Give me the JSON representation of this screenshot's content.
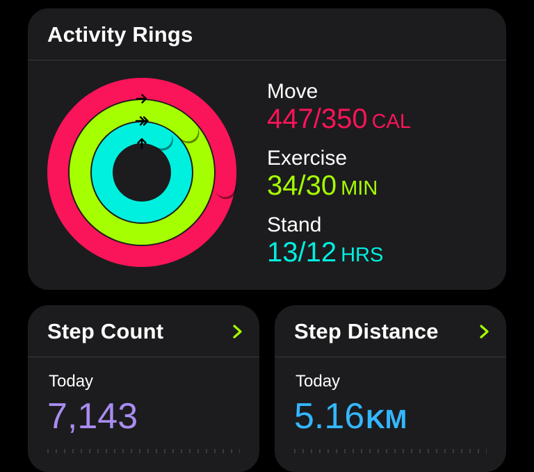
{
  "colors": {
    "move": "#fa1459",
    "exercise": "#a6ff00",
    "stand": "#00f0e0",
    "steps": "#a98cf0",
    "distance": "#34b7ff",
    "chevron": "#a6ff00",
    "card": "#1c1c1e",
    "background": "#000000"
  },
  "activity_rings": {
    "title": "Activity Rings",
    "move": {
      "label": "Move",
      "value": "447/350",
      "unit": "CAL",
      "progress": 1.277,
      "icon": "move-arrow-icon"
    },
    "exercise": {
      "label": "Exercise",
      "value": "34/30",
      "unit": "MIN",
      "progress": 1.133,
      "icon": "exercise-double-arrow-icon"
    },
    "stand": {
      "label": "Stand",
      "value": "13/12",
      "unit": "HRS",
      "progress": 1.083,
      "icon": "stand-up-arrow-icon"
    }
  },
  "step_count": {
    "title": "Step Count",
    "period": "Today",
    "value": "7,143",
    "icon": "chevron-right-icon"
  },
  "step_distance": {
    "title": "Step Distance",
    "period": "Today",
    "value": "5.16",
    "unit": "KM",
    "icon": "chevron-right-icon"
  }
}
